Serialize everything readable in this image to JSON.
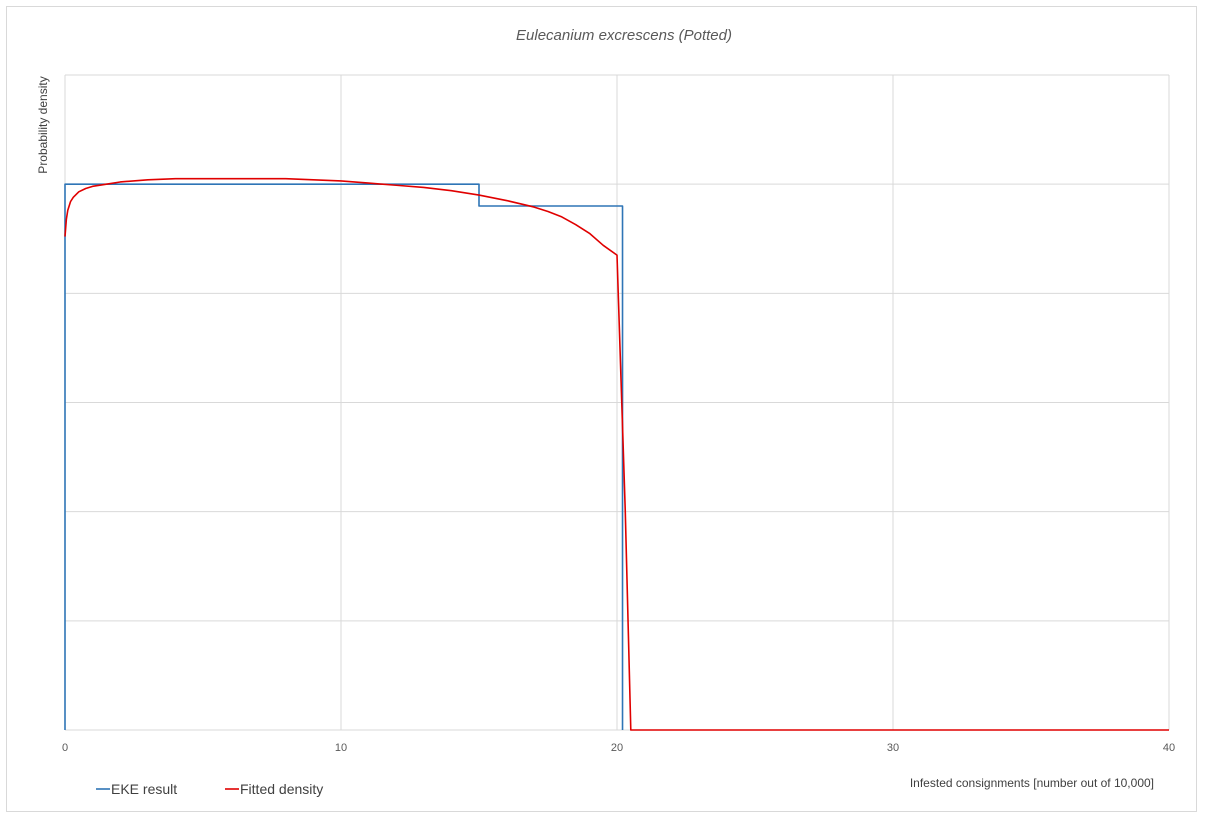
{
  "chart_data": {
    "type": "line",
    "title": "Eulecanium excrescens  (Potted)",
    "xlabel": "Infested consignments [number out of 10,000]",
    "ylabel": "Probability density",
    "xlim": [
      0,
      40
    ],
    "ylim": [
      0,
      0.06
    ],
    "x_ticks": [
      0,
      10,
      20,
      30,
      40
    ],
    "y_gridlines": [
      0,
      0.01,
      0.02,
      0.03,
      0.04,
      0.05,
      0.06
    ],
    "grid": true,
    "legend_position": "bottom-left",
    "series": [
      {
        "name": "EKE result",
        "color": "#2e75b6",
        "x": [
          0,
          0,
          15,
          15,
          20.2,
          20.2
        ],
        "y": [
          0,
          0.05,
          0.05,
          0.048,
          0.048,
          0
        ]
      },
      {
        "name": "Fitted density",
        "color": "#e00000",
        "x": [
          0,
          0.05,
          0.1,
          0.2,
          0.3,
          0.5,
          0.75,
          1,
          1.5,
          2,
          3,
          4,
          5,
          6,
          7,
          8,
          9,
          10,
          11,
          12,
          13,
          14,
          15,
          16,
          17,
          17.5,
          18,
          18.5,
          19,
          19.5,
          20,
          20.3,
          20.5,
          21,
          25,
          30,
          35,
          40
        ],
        "y": [
          0.0452,
          0.0468,
          0.0476,
          0.0484,
          0.0488,
          0.0493,
          0.0496,
          0.0498,
          0.05,
          0.0502,
          0.0504,
          0.0505,
          0.0505,
          0.0505,
          0.0505,
          0.0505,
          0.0504,
          0.0503,
          0.0501,
          0.0499,
          0.0497,
          0.0494,
          0.049,
          0.0485,
          0.0479,
          0.0475,
          0.047,
          0.0463,
          0.0455,
          0.0444,
          0.0435,
          0.02,
          0.0,
          0.0,
          0.0,
          0.0,
          0.0,
          0.0
        ]
      }
    ]
  }
}
